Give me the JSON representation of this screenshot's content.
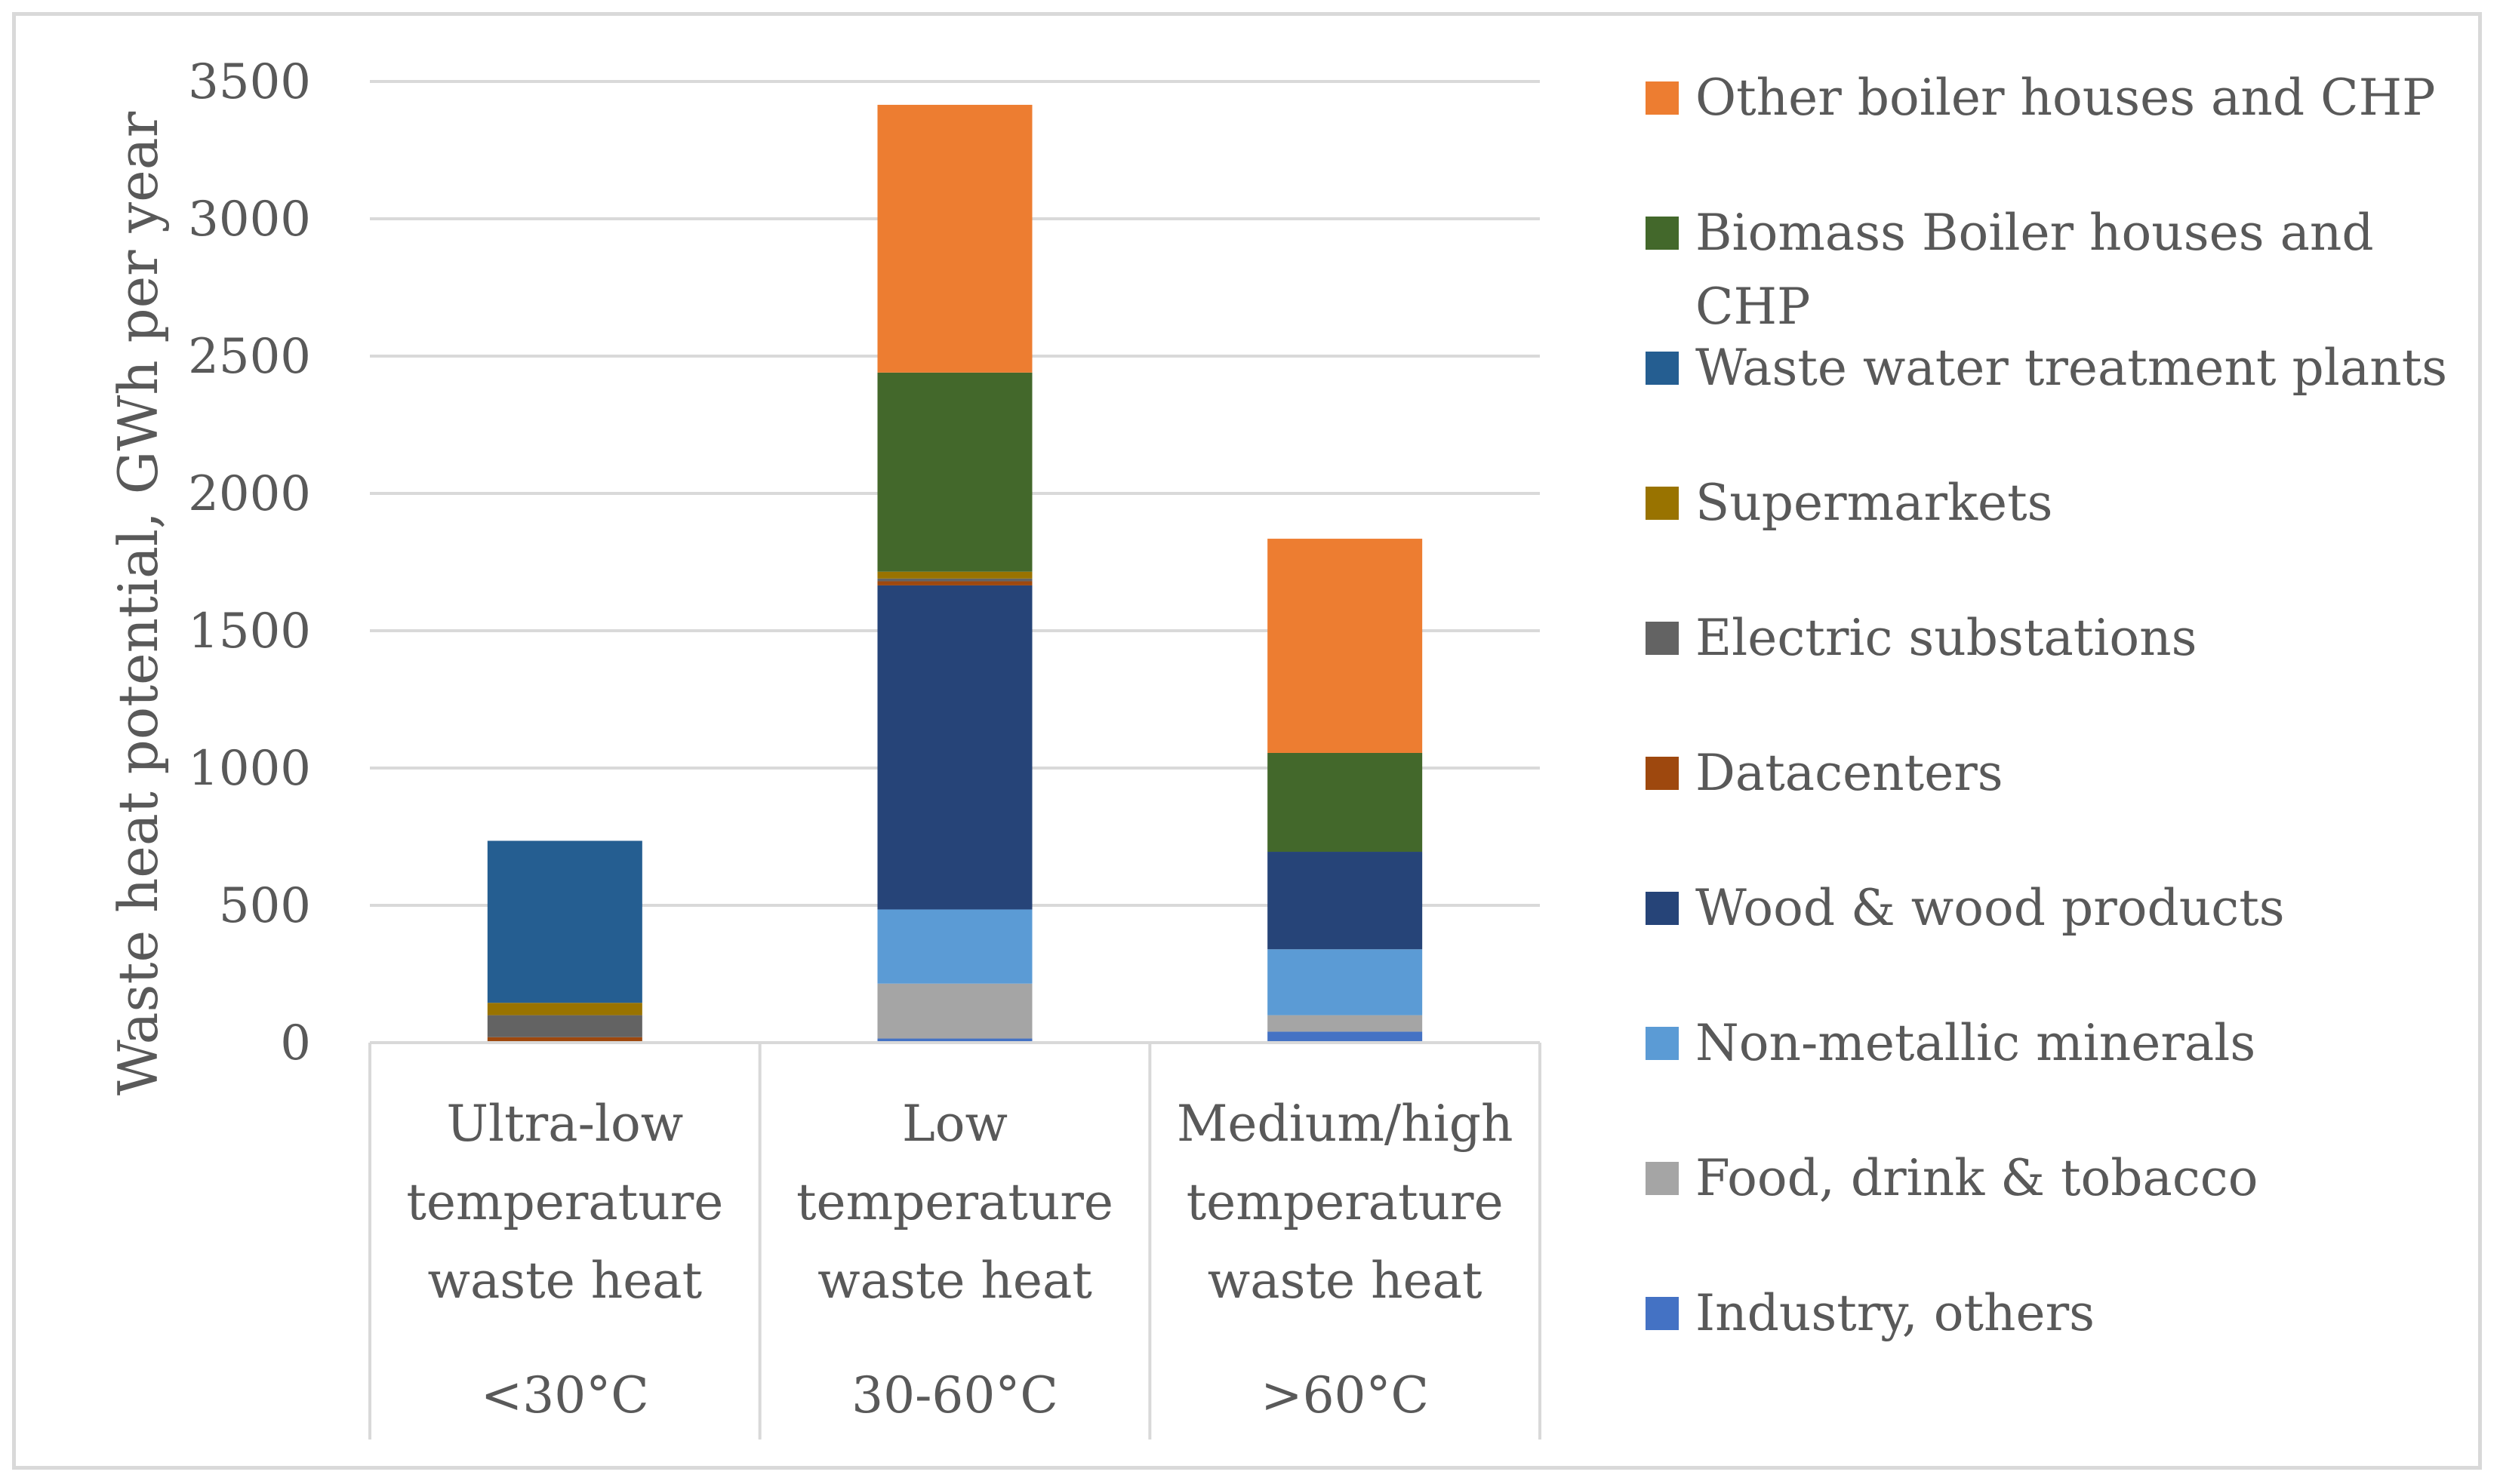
{
  "chart_data": {
    "type": "stacked-bar",
    "title": "",
    "xlabel": "",
    "ylabel": "Waste heat potential, GWh per year",
    "ylim": [
      0,
      3500
    ],
    "yticks": [
      0,
      500,
      1000,
      1500,
      2000,
      2500,
      3000,
      3500
    ],
    "grid": true,
    "legend_position": "right",
    "categories": [
      {
        "name_lines": [
          "Ultra-low",
          "temperature",
          "waste heat"
        ],
        "range": "<30°C"
      },
      {
        "name_lines": [
          "Low",
          "temperature",
          "waste heat"
        ],
        "range": "30-60°C"
      },
      {
        "name_lines": [
          "Medium/high",
          "temperature",
          "waste heat"
        ],
        "range": ">60°C"
      }
    ],
    "series": [
      {
        "name": "Industry, others",
        "label_lines": [
          "Industry, others"
        ],
        "color": "#4472C4",
        "values": [
          0,
          15,
          40
        ]
      },
      {
        "name": "Food, drink & tobacco",
        "label_lines": [
          "Food, drink & tobacco"
        ],
        "color": "#A5A5A5",
        "values": [
          0,
          200,
          60
        ]
      },
      {
        "name": "Non-metallic minerals",
        "label_lines": [
          "Non-metallic minerals"
        ],
        "color": "#5B9BD5",
        "values": [
          0,
          270,
          240
        ]
      },
      {
        "name": "Wood & wood products",
        "label_lines": [
          "Wood & wood products"
        ],
        "color": "#264478",
        "values": [
          0,
          1180,
          355
        ]
      },
      {
        "name": "Datacenters",
        "label_lines": [
          "Datacenters"
        ],
        "color": "#9E480E",
        "values": [
          20,
          15,
          0
        ]
      },
      {
        "name": "Electric substations",
        "label_lines": [
          "Electric substations"
        ],
        "color": "#636363",
        "values": [
          80,
          10,
          0
        ]
      },
      {
        "name": "Supermarkets",
        "label_lines": [
          "Supermarkets"
        ],
        "color": "#997300",
        "values": [
          45,
          25,
          0
        ]
      },
      {
        "name": "Waste water treatment plants",
        "label_lines": [
          "Waste water treatment plants"
        ],
        "color": "#255E91",
        "values": [
          590,
          0,
          0
        ]
      },
      {
        "name": "Biomass Boiler houses and CHP",
        "label_lines": [
          "Biomass Boiler houses and",
          "CHP"
        ],
        "color": "#43682B",
        "values": [
          0,
          725,
          360
        ]
      },
      {
        "name": "Other boiler houses and CHP",
        "label_lines": [
          "Other boiler houses and CHP"
        ],
        "color": "#ED7D31",
        "values": [
          0,
          975,
          780
        ]
      }
    ]
  }
}
